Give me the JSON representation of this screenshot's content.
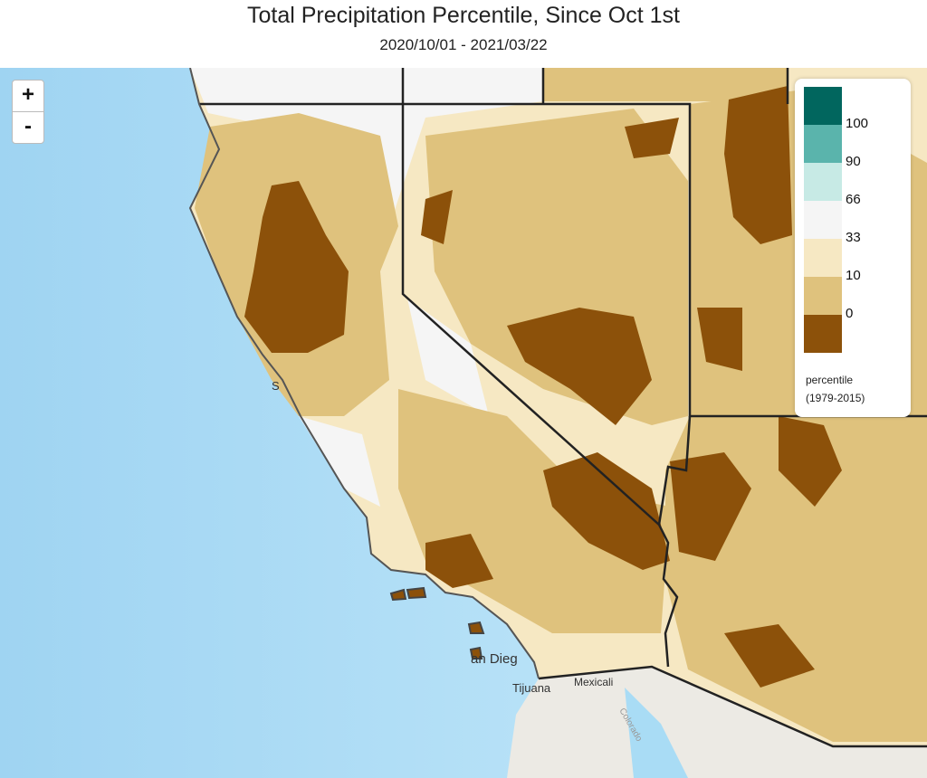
{
  "header": {
    "title": "Total Precipitation Percentile, Since Oct 1st",
    "subtitle": "2020/10/01 - 2021/03/22"
  },
  "zoom": {
    "in": "+",
    "out": "-"
  },
  "legend": {
    "colors": [
      "#01665e",
      "#5ab4ac",
      "#c7eae5",
      "#f5f5f5",
      "#f6e8c3",
      "#dfc27d",
      "#8c510a"
    ],
    "labels": [
      "100",
      "90",
      "66",
      "33",
      "10",
      "0"
    ],
    "title": "percentile",
    "subtitle": "(1979-2015)"
  },
  "places": [
    "S",
    "an Dieg",
    "Tijuana",
    "Mexicali",
    "Colorado"
  ]
}
